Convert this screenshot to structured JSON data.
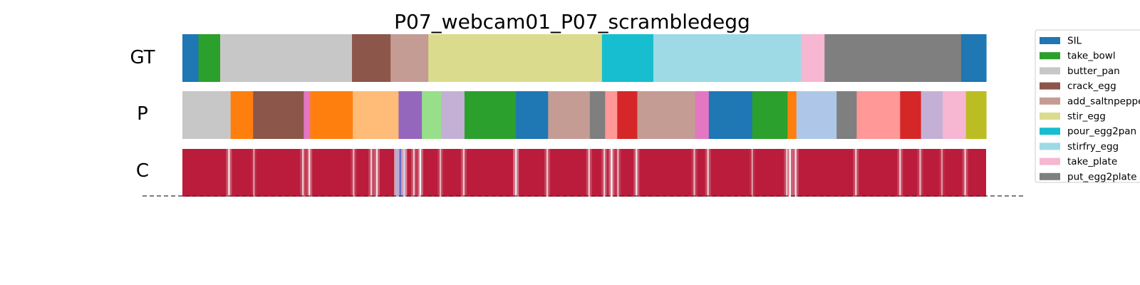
{
  "chart_data": {
    "type": "segmentation-timeline",
    "title": "P07_webcam01_P07_scrambledegg",
    "rows": [
      {
        "label": "GT",
        "segments": [
          {
            "start": 0.0,
            "end": 2.0,
            "class": "SIL"
          },
          {
            "start": 2.0,
            "end": 4.7,
            "class": "take_bowl"
          },
          {
            "start": 4.7,
            "end": 21.1,
            "class": "butter_pan"
          },
          {
            "start": 21.1,
            "end": 25.9,
            "class": "crack_egg"
          },
          {
            "start": 25.9,
            "end": 30.6,
            "class": "add_saltnpepper"
          },
          {
            "start": 30.6,
            "end": 52.2,
            "class": "stir_egg"
          },
          {
            "start": 52.2,
            "end": 58.6,
            "class": "pour_egg2pan"
          },
          {
            "start": 58.6,
            "end": 77.0,
            "class": "stirfry_egg"
          },
          {
            "start": 77.0,
            "end": 79.9,
            "class": "take_plate"
          },
          {
            "start": 79.9,
            "end": 96.9,
            "class": "put_egg2plate"
          },
          {
            "start": 96.9,
            "end": 100.0,
            "class": "SIL"
          }
        ]
      },
      {
        "label": "P",
        "segments": [
          {
            "start": 0.0,
            "end": 6.0,
            "color": "#c7c7c7"
          },
          {
            "start": 6.0,
            "end": 8.8,
            "color": "#ff7f0e"
          },
          {
            "start": 8.8,
            "end": 15.1,
            "color": "#8c564b"
          },
          {
            "start": 15.1,
            "end": 15.9,
            "color": "#e377c2"
          },
          {
            "start": 15.9,
            "end": 21.2,
            "color": "#ff7f0e"
          },
          {
            "start": 21.2,
            "end": 26.9,
            "color": "#ffbb78"
          },
          {
            "start": 26.9,
            "end": 29.8,
            "color": "#9467bd"
          },
          {
            "start": 29.8,
            "end": 32.2,
            "color": "#98df8a"
          },
          {
            "start": 32.2,
            "end": 35.1,
            "color": "#c5b0d5"
          },
          {
            "start": 35.1,
            "end": 41.5,
            "color": "#2ca02c"
          },
          {
            "start": 41.5,
            "end": 45.5,
            "color": "#1f77b4"
          },
          {
            "start": 45.5,
            "end": 50.7,
            "color": "#c49c94"
          },
          {
            "start": 50.7,
            "end": 52.6,
            "color": "#7f7f7f"
          },
          {
            "start": 52.6,
            "end": 54.1,
            "color": "#ff9896"
          },
          {
            "start": 54.1,
            "end": 56.6,
            "color": "#d62728"
          },
          {
            "start": 56.6,
            "end": 63.8,
            "color": "#c49c94"
          },
          {
            "start": 63.8,
            "end": 65.5,
            "color": "#e377c2"
          },
          {
            "start": 65.5,
            "end": 70.9,
            "color": "#1f77b4"
          },
          {
            "start": 70.9,
            "end": 75.3,
            "color": "#2ca02c"
          },
          {
            "start": 75.3,
            "end": 76.4,
            "color": "#ff7f0e"
          },
          {
            "start": 76.4,
            "end": 81.4,
            "color": "#aec7e8"
          },
          {
            "start": 81.4,
            "end": 83.9,
            "color": "#7f7f7f"
          },
          {
            "start": 83.9,
            "end": 89.3,
            "color": "#ff9896"
          },
          {
            "start": 89.3,
            "end": 91.9,
            "color": "#d62728"
          },
          {
            "start": 91.9,
            "end": 94.6,
            "color": "#c5b0d5"
          },
          {
            "start": 94.6,
            "end": 97.5,
            "color": "#f7b6d2"
          },
          {
            "start": 97.5,
            "end": 100.0,
            "color": "#bcbd22"
          }
        ]
      },
      {
        "label": "C",
        "base_value": 0.95,
        "marks": [
          {
            "pos": 5.8,
            "value": 0.55
          },
          {
            "pos": 8.9,
            "value": 0.7
          },
          {
            "pos": 15.0,
            "value": 0.6
          },
          {
            "pos": 15.8,
            "value": 0.55
          },
          {
            "pos": 21.3,
            "value": 0.65
          },
          {
            "pos": 23.5,
            "value": 0.6
          },
          {
            "pos": 24.2,
            "value": 0.55
          },
          {
            "pos": 26.7,
            "value": 0.3
          },
          {
            "pos": 27.1,
            "value": 0.1
          },
          {
            "pos": 27.6,
            "value": 0.4
          },
          {
            "pos": 28.8,
            "value": 0.6
          },
          {
            "pos": 29.6,
            "value": 0.5
          },
          {
            "pos": 32.1,
            "value": 0.65
          },
          {
            "pos": 35.0,
            "value": 0.6
          },
          {
            "pos": 41.5,
            "value": 0.45
          },
          {
            "pos": 45.4,
            "value": 0.6
          },
          {
            "pos": 50.6,
            "value": 0.6
          },
          {
            "pos": 52.5,
            "value": 0.6
          },
          {
            "pos": 53.4,
            "value": 0.5
          },
          {
            "pos": 54.2,
            "value": 0.65
          },
          {
            "pos": 56.5,
            "value": 0.55
          },
          {
            "pos": 63.7,
            "value": 0.65
          },
          {
            "pos": 65.4,
            "value": 0.6
          },
          {
            "pos": 70.9,
            "value": 0.7
          },
          {
            "pos": 75.2,
            "value": 0.6
          },
          {
            "pos": 75.6,
            "value": 0.5
          },
          {
            "pos": 76.3,
            "value": 0.55
          },
          {
            "pos": 83.8,
            "value": 0.6
          },
          {
            "pos": 89.3,
            "value": 0.6
          },
          {
            "pos": 91.8,
            "value": 0.65
          },
          {
            "pos": 94.5,
            "value": 0.7
          },
          {
            "pos": 97.4,
            "value": 0.6
          }
        ]
      }
    ],
    "legend": {
      "placement": "right",
      "entries": [
        {
          "name": "SIL",
          "color": "#1f77b4"
        },
        {
          "name": "take_bowl",
          "color": "#2ca02c"
        },
        {
          "name": "butter_pan",
          "color": "#c7c7c7"
        },
        {
          "name": "crack_egg",
          "color": "#8c564b"
        },
        {
          "name": "add_saltnpepper",
          "color": "#c49c94"
        },
        {
          "name": "stir_egg",
          "color": "#dbdb8d"
        },
        {
          "name": "pour_egg2pan",
          "color": "#17becf"
        },
        {
          "name": "stirfry_egg",
          "color": "#9edae5"
        },
        {
          "name": "take_plate",
          "color": "#f7b6d2"
        },
        {
          "name": "put_egg2plate",
          "color": "#7f7f7f"
        }
      ]
    },
    "colormap": {
      "low": "#3b4cc0",
      "mid": "#f7f7f7",
      "high": "#b40426"
    }
  }
}
